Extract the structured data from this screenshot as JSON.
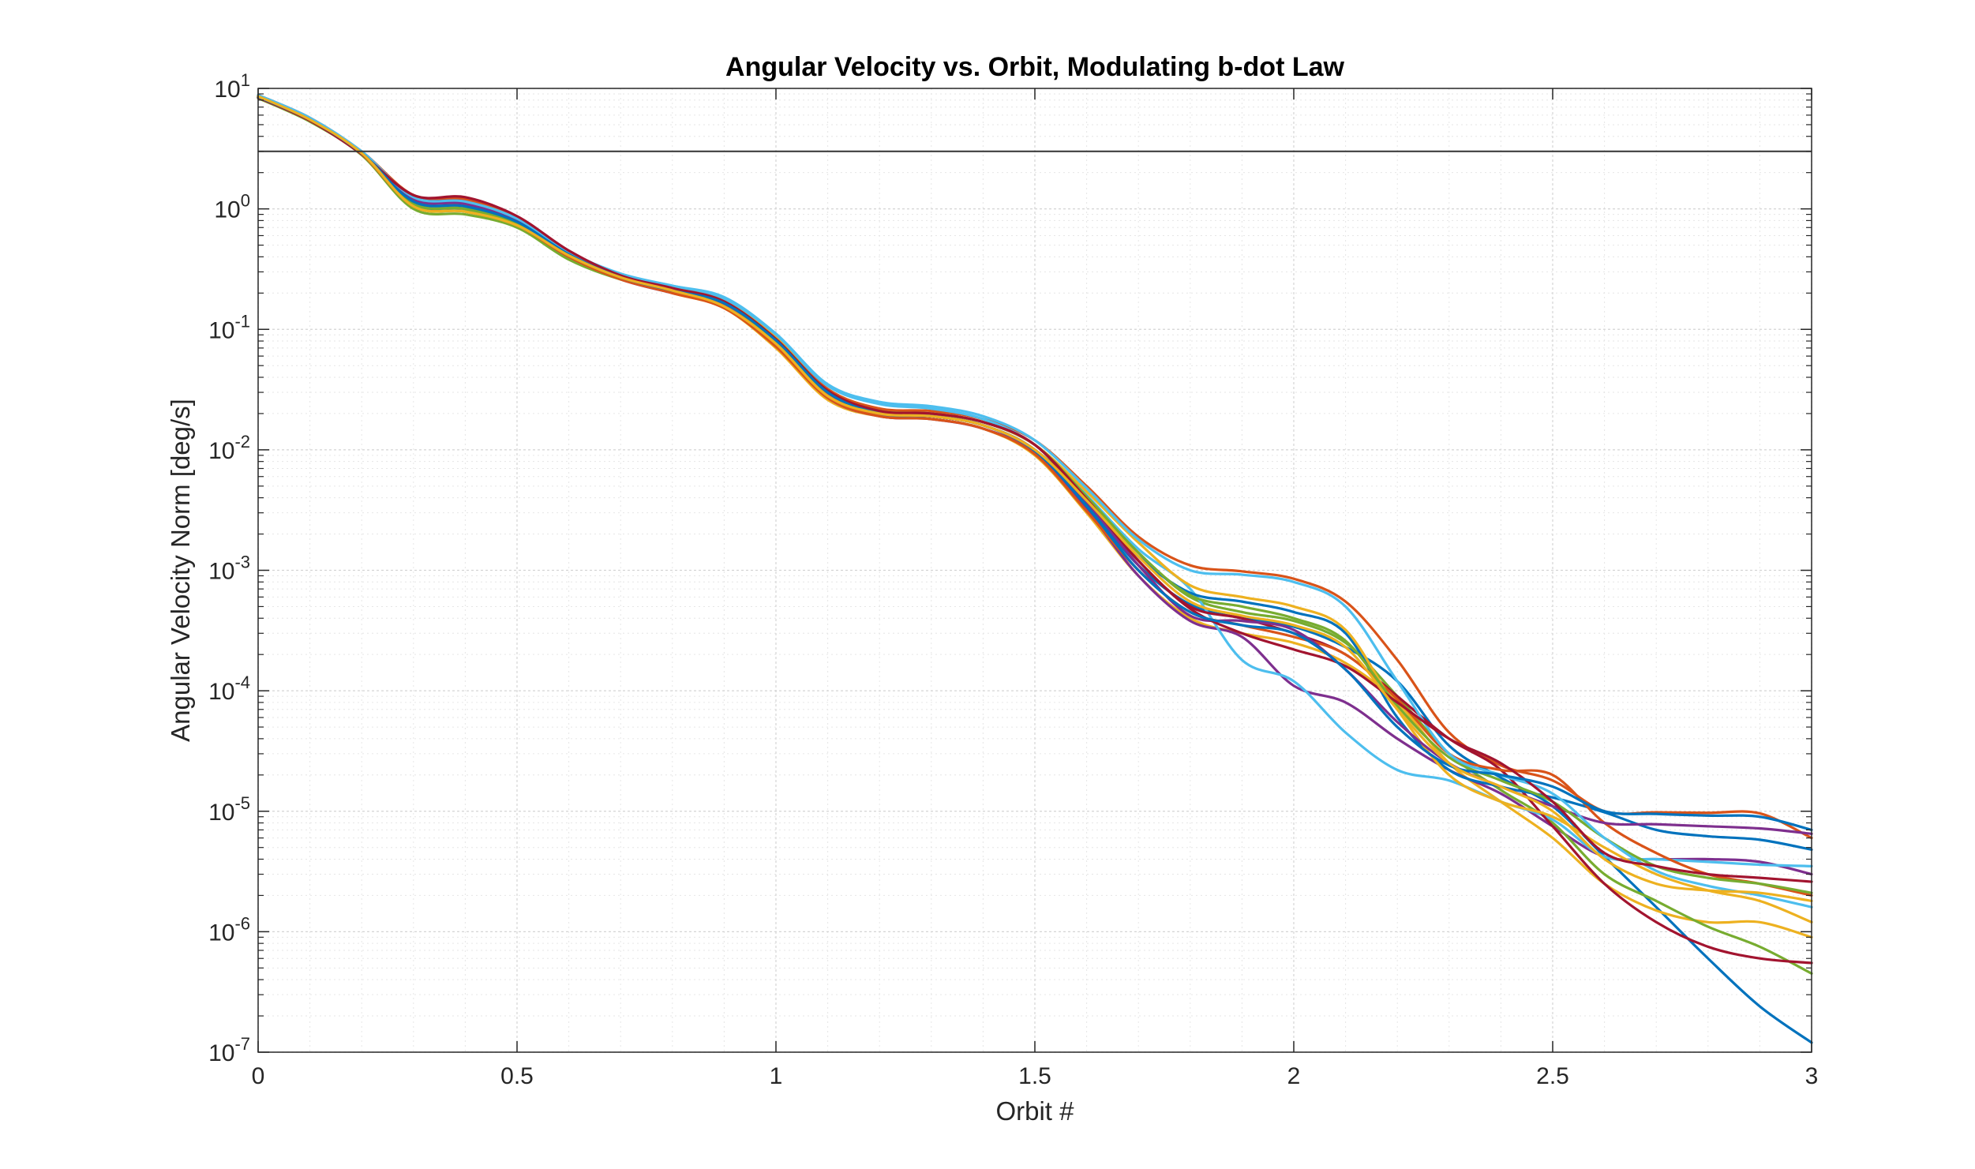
{
  "chart_data": {
    "type": "line",
    "title": "Angular Velocity vs. Orbit, Modulating b-dot Law",
    "xlabel": "Orbit #",
    "ylabel": "Angular Velocity Norm [deg/s]",
    "xlim": [
      0,
      3
    ],
    "ylim": [
      1e-07,
      10
    ],
    "yscale": "log",
    "grid": true,
    "minor_grid": true,
    "xticks": [
      0,
      0.5,
      1,
      1.5,
      2,
      2.5,
      3
    ],
    "xtick_labels": [
      "0",
      "0.5",
      "1",
      "1.5",
      "2",
      "2.5",
      "3"
    ],
    "yticks": [
      {
        "base": "10",
        "exp": "1",
        "value": 10
      },
      {
        "base": "10",
        "exp": "0",
        "value": 1
      },
      {
        "base": "10",
        "exp": "-1",
        "value": 0.1
      },
      {
        "base": "10",
        "exp": "-2",
        "value": 0.01
      },
      {
        "base": "10",
        "exp": "-3",
        "value": 0.001
      },
      {
        "base": "10",
        "exp": "-4",
        "value": 0.0001
      },
      {
        "base": "10",
        "exp": "-5",
        "value": 1e-05
      },
      {
        "base": "10",
        "exp": "-6",
        "value": 1e-06
      },
      {
        "base": "10",
        "exp": "-7",
        "value": 1e-07
      }
    ],
    "reference_line": {
      "y": 3,
      "color": "#333333"
    },
    "x": [
      0,
      0.1,
      0.2,
      0.3,
      0.4,
      0.5,
      0.6,
      0.7,
      0.8,
      0.9,
      1.0,
      1.1,
      1.2,
      1.3,
      1.4,
      1.5,
      1.6,
      1.7,
      1.8,
      1.9,
      2.0,
      2.1,
      2.2,
      2.3,
      2.4,
      2.5,
      2.6,
      2.7,
      2.8,
      2.9,
      3.0
    ],
    "series": [
      {
        "color": "#0072BD",
        "values": [
          8.5,
          5.5,
          2.9,
          1.2,
          1.1,
          0.8,
          0.42,
          0.27,
          0.21,
          0.165,
          0.08,
          0.03,
          0.02,
          0.019,
          0.016,
          0.01,
          0.0035,
          0.0011,
          0.00052,
          0.0004,
          0.00034,
          0.00023,
          0.00012,
          3.5e-05,
          1.9e-05,
          1.1e-05,
          4.2e-06,
          1.6e-06,
          6e-07,
          2.4e-07,
          1.2e-07
        ]
      },
      {
        "color": "#D95319",
        "values": [
          8.8,
          5.7,
          3.0,
          1.3,
          1.2,
          0.85,
          0.44,
          0.28,
          0.22,
          0.175,
          0.085,
          0.032,
          0.022,
          0.021,
          0.018,
          0.012,
          0.005,
          0.0019,
          0.0011,
          0.00098,
          0.00085,
          0.00055,
          0.00018,
          4.5e-05,
          2.4e-05,
          1.8e-05,
          1e-05,
          9.8e-06,
          9.7e-06,
          9.6e-06,
          6e-06
        ]
      },
      {
        "color": "#EDB120",
        "values": [
          8.4,
          5.4,
          2.85,
          1.05,
          0.95,
          0.72,
          0.4,
          0.27,
          0.2,
          0.15,
          0.07,
          0.026,
          0.019,
          0.018,
          0.015,
          0.009,
          0.003,
          0.0009,
          0.0004,
          0.0003,
          0.00025,
          0.00017,
          8e-05,
          2.5e-05,
          1.2e-05,
          6e-06,
          2.5e-06,
          1.5e-06,
          1.2e-06,
          1.2e-06,
          9e-07
        ]
      },
      {
        "color": "#7E2F8E",
        "values": [
          8.6,
          5.6,
          2.95,
          1.15,
          1.05,
          0.78,
          0.41,
          0.26,
          0.2,
          0.155,
          0.075,
          0.027,
          0.019,
          0.018,
          0.015,
          0.0095,
          0.0032,
          0.0009,
          0.00038,
          0.00028,
          0.00011,
          8e-05,
          4e-05,
          2.2e-05,
          1.4e-05,
          7.5e-06,
          4.2e-06,
          4e-06,
          4e-06,
          3.8e-06,
          3e-06
        ]
      },
      {
        "color": "#77AC30",
        "values": [
          8.3,
          5.3,
          2.8,
          1.0,
          0.9,
          0.7,
          0.38,
          0.26,
          0.21,
          0.16,
          0.078,
          0.028,
          0.02,
          0.019,
          0.016,
          0.01,
          0.004,
          0.0014,
          0.0006,
          0.00045,
          0.00038,
          0.00025,
          9e-05,
          3e-05,
          1.5e-05,
          8e-06,
          3e-06,
          1.8e-06,
          1.1e-06,
          7.5e-07,
          4.5e-07
        ]
      },
      {
        "color": "#4DBEEE",
        "values": [
          8.7,
          5.6,
          2.9,
          1.1,
          1.0,
          0.75,
          0.4,
          0.28,
          0.23,
          0.18,
          0.09,
          0.034,
          0.024,
          0.022,
          0.018,
          0.011,
          0.0042,
          0.0015,
          0.0007,
          0.00018,
          0.00012,
          4.5e-05,
          2.2e-05,
          1.8e-05,
          1.2e-05,
          8.5e-06,
          4.2e-06,
          4e-06,
          3.8e-06,
          3.6e-06,
          3.5e-06
        ]
      },
      {
        "color": "#A2142F",
        "values": [
          8.5,
          5.5,
          2.9,
          1.25,
          1.15,
          0.82,
          0.43,
          0.27,
          0.21,
          0.17,
          0.082,
          0.031,
          0.021,
          0.02,
          0.017,
          0.011,
          0.0038,
          0.0012,
          0.0005,
          0.0004,
          0.0003,
          0.0002,
          9e-05,
          4e-05,
          2.2e-05,
          7.5e-06,
          2.5e-06,
          1.2e-06,
          7.5e-07,
          6e-07,
          5.5e-07
        ]
      },
      {
        "color": "#0072BD",
        "values": [
          8.6,
          5.5,
          2.9,
          1.1,
          1.0,
          0.76,
          0.41,
          0.27,
          0.21,
          0.16,
          0.078,
          0.029,
          0.02,
          0.019,
          0.016,
          0.01,
          0.0036,
          0.0013,
          0.00065,
          0.00055,
          0.00045,
          0.0003,
          6e-05,
          2.2e-05,
          1.6e-05,
          1.3e-05,
          9.8e-06,
          7e-06,
          6.2e-06,
          5.8e-06,
          4.8e-06
        ]
      },
      {
        "color": "#D95319",
        "values": [
          8.4,
          5.4,
          2.85,
          1.05,
          0.95,
          0.73,
          0.4,
          0.26,
          0.2,
          0.15,
          0.072,
          0.027,
          0.019,
          0.018,
          0.015,
          0.0092,
          0.0031,
          0.001,
          0.00045,
          0.00035,
          0.00028,
          0.0002,
          8.5e-05,
          3e-05,
          2.2e-05,
          2e-05,
          8e-06,
          4.5e-06,
          3e-06,
          2.5e-06,
          2e-06
        ]
      },
      {
        "color": "#EDB120",
        "values": [
          8.7,
          5.6,
          2.95,
          1.15,
          1.05,
          0.78,
          0.42,
          0.28,
          0.22,
          0.17,
          0.085,
          0.031,
          0.021,
          0.02,
          0.017,
          0.011,
          0.0045,
          0.0017,
          0.00075,
          0.0006,
          0.0005,
          0.00032,
          7e-05,
          2e-05,
          1.2e-05,
          9e-06,
          5e-06,
          3e-06,
          2.2e-06,
          1.8e-06,
          1.2e-06
        ]
      },
      {
        "color": "#7E2F8E",
        "values": [
          8.5,
          5.5,
          2.9,
          1.2,
          1.1,
          0.8,
          0.42,
          0.27,
          0.21,
          0.16,
          0.08,
          0.029,
          0.02,
          0.019,
          0.016,
          0.01,
          0.0037,
          0.0011,
          0.00042,
          0.00038,
          0.00032,
          0.00015,
          5.5e-05,
          2.5e-05,
          1.6e-05,
          1.1e-05,
          8e-06,
          7.8e-06,
          7.5e-06,
          7.2e-06,
          6.5e-06
        ]
      },
      {
        "color": "#77AC30",
        "values": [
          8.6,
          5.6,
          2.9,
          1.1,
          1.0,
          0.75,
          0.41,
          0.27,
          0.21,
          0.165,
          0.08,
          0.03,
          0.021,
          0.02,
          0.017,
          0.011,
          0.0041,
          0.0014,
          0.00062,
          0.0005,
          0.0004,
          0.00026,
          7.5e-05,
          2.8e-05,
          1.8e-05,
          1.2e-05,
          6e-06,
          3.5e-06,
          2.8e-06,
          2.5e-06,
          2.1e-06
        ]
      },
      {
        "color": "#4DBEEE",
        "values": [
          8.8,
          5.7,
          3.0,
          1.25,
          1.15,
          0.83,
          0.44,
          0.29,
          0.23,
          0.185,
          0.092,
          0.035,
          0.025,
          0.023,
          0.019,
          0.012,
          0.0048,
          0.0018,
          0.001,
          0.00092,
          0.0008,
          0.0005,
          0.00012,
          3e-05,
          2e-05,
          1.4e-05,
          6e-06,
          3.2e-06,
          2.4e-06,
          2e-06,
          1.6e-06
        ]
      },
      {
        "color": "#A2142F",
        "values": [
          8.4,
          5.4,
          2.85,
          1.3,
          1.25,
          0.87,
          0.45,
          0.28,
          0.22,
          0.17,
          0.083,
          0.031,
          0.021,
          0.02,
          0.017,
          0.011,
          0.0039,
          0.0012,
          0.00048,
          0.0003,
          0.00022,
          0.00016,
          8e-05,
          4e-05,
          2.5e-05,
          1.2e-05,
          4.5e-06,
          3.5e-06,
          3e-06,
          2.8e-06,
          2.6e-06
        ]
      },
      {
        "color": "#0072BD",
        "values": [
          8.5,
          5.5,
          2.9,
          1.15,
          1.05,
          0.78,
          0.42,
          0.27,
          0.21,
          0.165,
          0.081,
          0.03,
          0.02,
          0.019,
          0.016,
          0.0098,
          0.0034,
          0.001,
          0.00045,
          0.00035,
          0.0003,
          0.00015,
          5e-05,
          2.4e-05,
          2e-05,
          1.6e-05,
          1e-05,
          9.5e-06,
          9.2e-06,
          9e-06,
          7e-06
        ]
      },
      {
        "color": "#EDB120",
        "values": [
          8.6,
          5.5,
          2.9,
          1.05,
          0.95,
          0.73,
          0.41,
          0.27,
          0.21,
          0.155,
          0.076,
          0.028,
          0.02,
          0.019,
          0.016,
          0.01,
          0.0038,
          0.0013,
          0.00055,
          0.00042,
          0.00035,
          0.00023,
          7e-05,
          2.5e-05,
          1.6e-05,
          1e-05,
          4e-06,
          2.5e-06,
          2.2e-06,
          2.1e-06,
          1.8e-06
        ]
      }
    ]
  }
}
